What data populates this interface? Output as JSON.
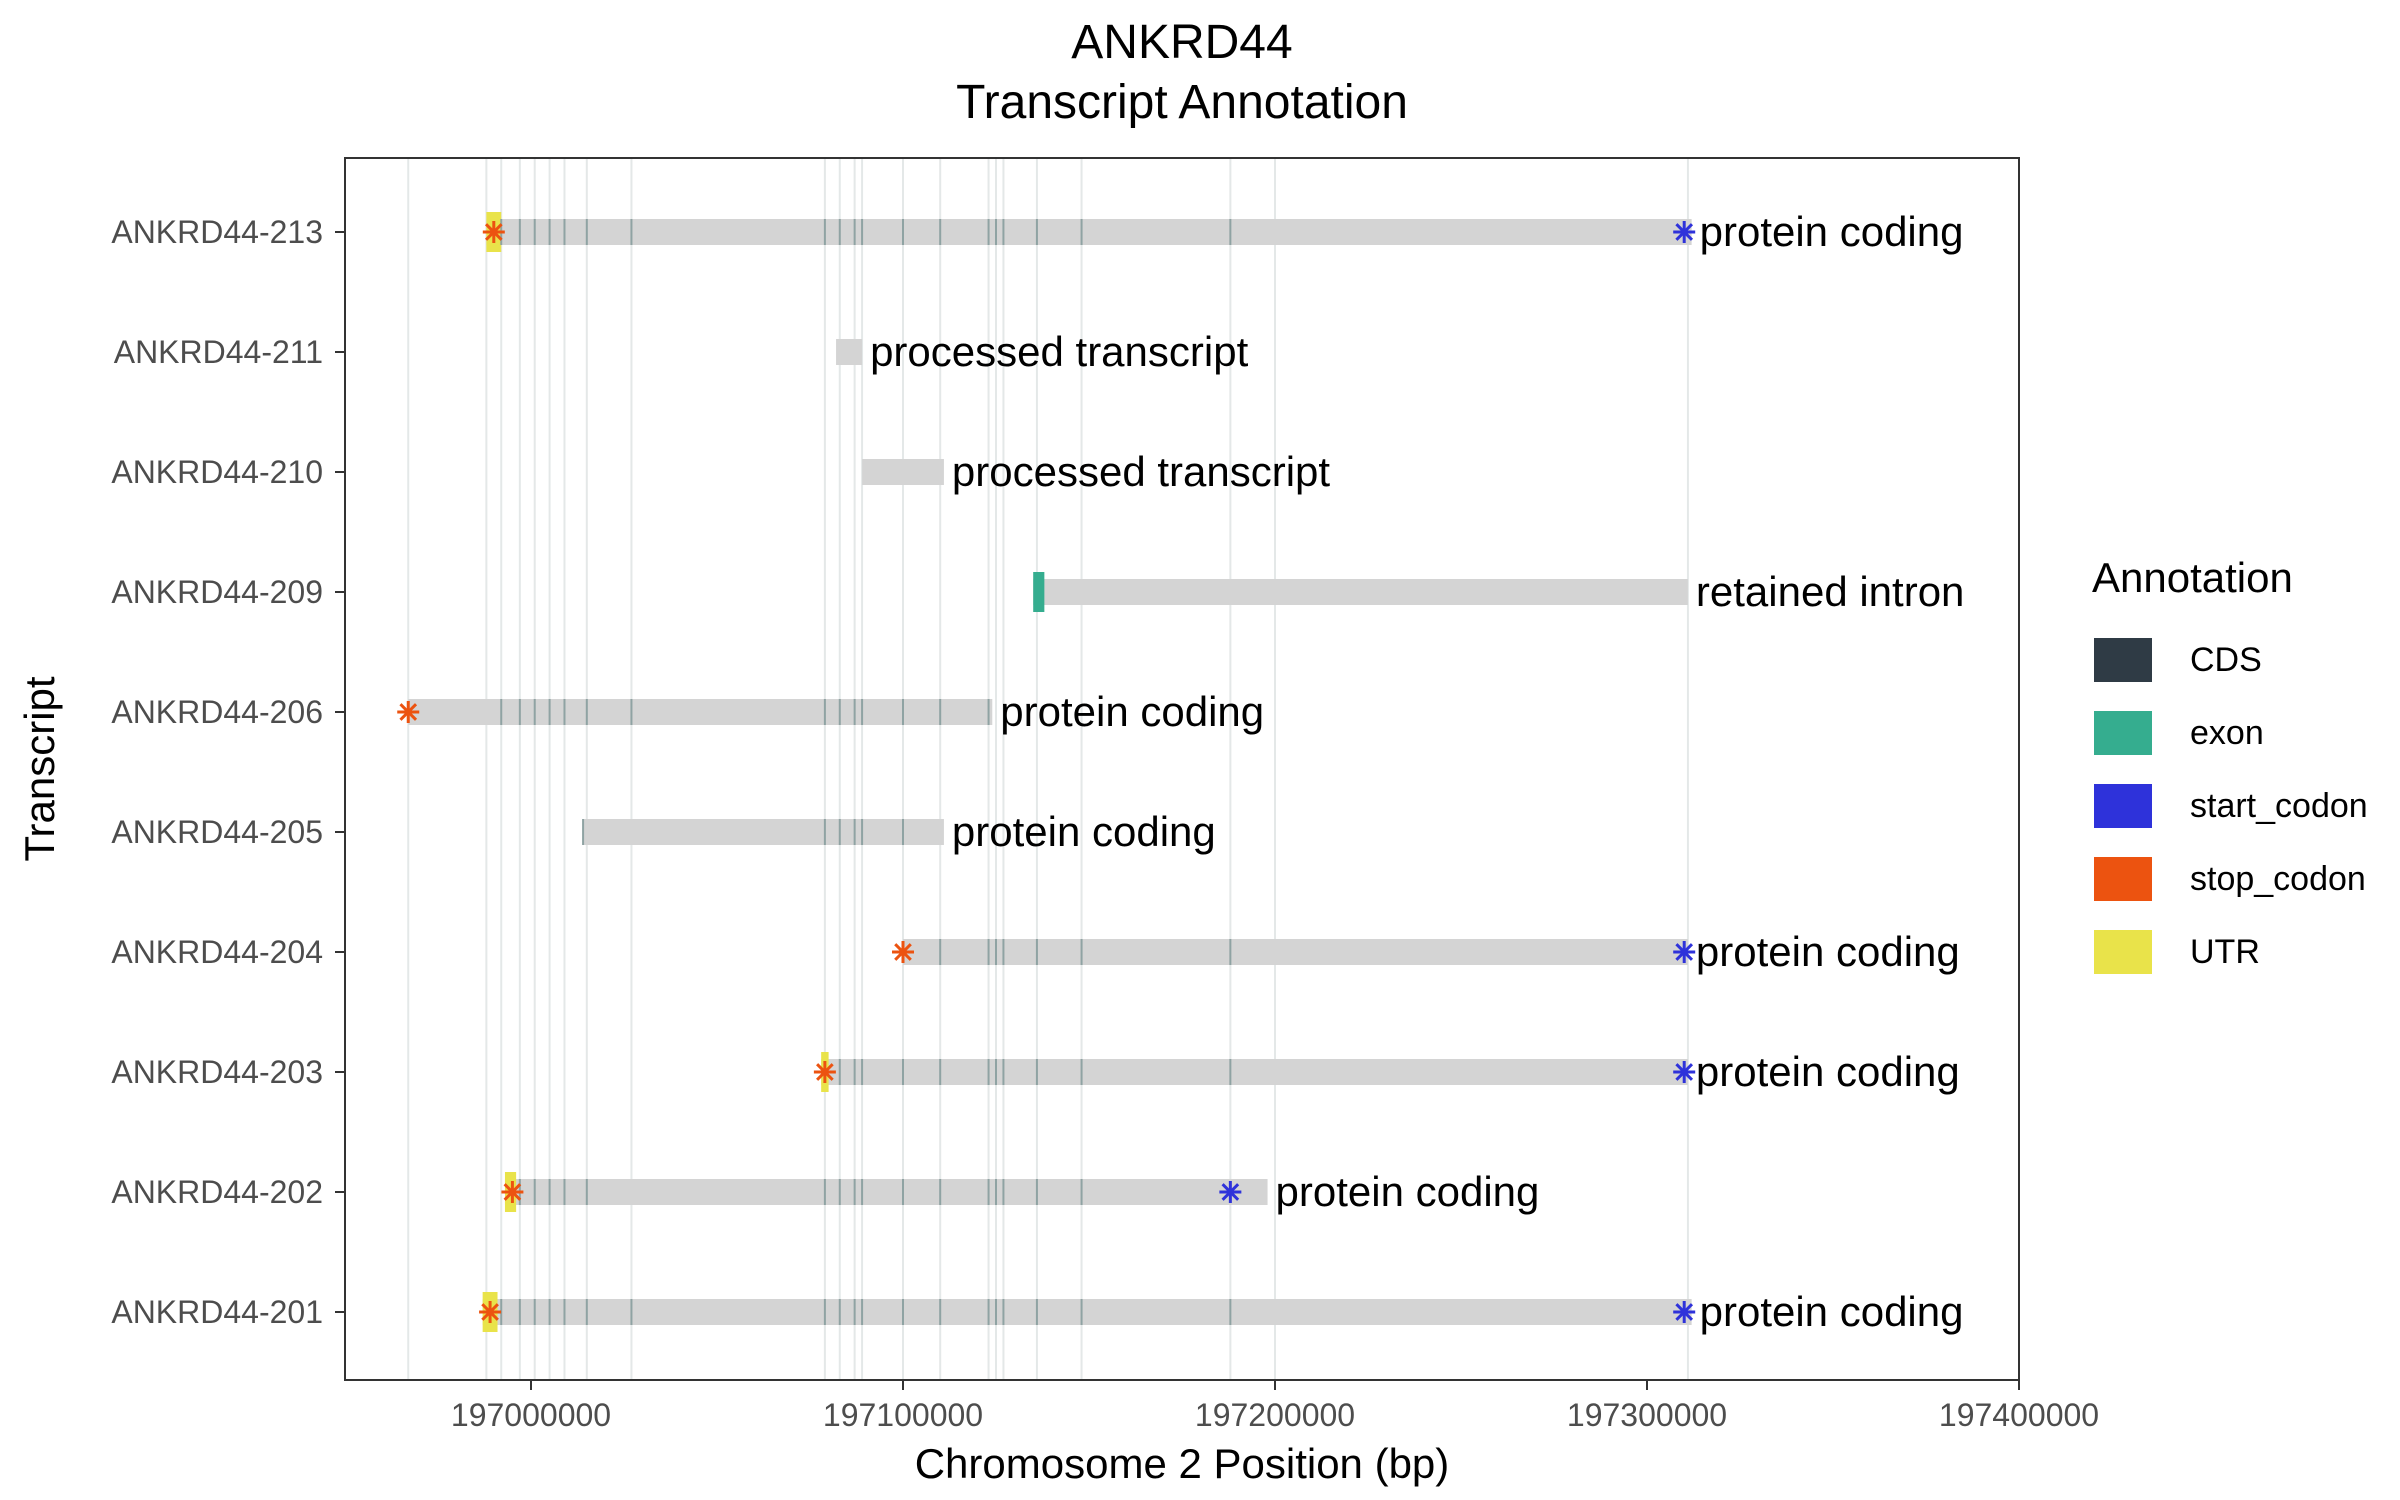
{
  "chart_data": {
    "type": "gene-track",
    "title_line1": "ANKRD44",
    "title_line2": "Transcript Annotation",
    "xlabel": "Chromosome 2 Position (bp)",
    "ylabel": "Transcript",
    "xlim": [
      196950000,
      197400000
    ],
    "x_ticks": [
      {
        "value": 197000000,
        "label": "197000000"
      },
      {
        "value": 197100000,
        "label": "197100000"
      },
      {
        "value": 197200000,
        "label": "197200000"
      },
      {
        "value": 197300000,
        "label": "197300000"
      },
      {
        "value": 197400000,
        "label": "197400000"
      }
    ],
    "legend": {
      "title": "Annotation",
      "position": "right",
      "entries": [
        {
          "key": "CDS",
          "label": "CDS",
          "color": "#2f3b45"
        },
        {
          "key": "exon",
          "label": "exon",
          "color": "#35ad8f"
        },
        {
          "key": "start_codon",
          "label": "start_codon",
          "color": "#2e32da"
        },
        {
          "key": "stop_codon",
          "label": "stop_codon",
          "color": "#ec5310"
        },
        {
          "key": "UTR",
          "label": "UTR",
          "color": "#e9e34a"
        }
      ]
    },
    "colors": {
      "transcript_body": "#d4d4d4",
      "exon_guide": "#e4e8e8",
      "cds_mark": "#8fa3a3"
    },
    "exon_positions": [
      196967000,
      196988000,
      196992000,
      196997000,
      197001000,
      197005000,
      197009000,
      197015000,
      197027000,
      197079000,
      197083000,
      197087000,
      197089000,
      197100000,
      197110000,
      197123000,
      197125000,
      197127000,
      197136000,
      197148000,
      197188000,
      197200000,
      197311000
    ],
    "transcripts": [
      {
        "name": "ANKRD44-213",
        "start": 196988000,
        "end": 197312000,
        "biotype": "protein coding",
        "utr": [
          [
            196988000,
            196992000
          ]
        ],
        "stop": 196990000,
        "start_codon": 197310000,
        "cds": [
          196992000,
          196997000,
          197001000,
          197005000,
          197009000,
          197015000,
          197027000,
          197079000,
          197083000,
          197087000,
          197089000,
          197100000,
          197110000,
          197123000,
          197125000,
          197127000,
          197136000,
          197148000,
          197188000
        ]
      },
      {
        "name": "ANKRD44-211",
        "start": 197082000,
        "end": 197089000,
        "biotype": "processed transcript",
        "cds": []
      },
      {
        "name": "ANKRD44-210",
        "start": 197089000,
        "end": 197111000,
        "biotype": "processed transcript",
        "cds": []
      },
      {
        "name": "ANKRD44-209",
        "start": 197135000,
        "end": 197311000,
        "biotype": "retained intron",
        "exon": [
          [
            197135000,
            197138000
          ]
        ],
        "cds": []
      },
      {
        "name": "ANKRD44-206",
        "start": 196967000,
        "end": 197124000,
        "biotype": "protein coding",
        "stop": 196967000,
        "cds": [
          196992000,
          196997000,
          197001000,
          197005000,
          197009000,
          197015000,
          197027000,
          197079000,
          197083000,
          197087000,
          197089000,
          197100000,
          197110000,
          197123000
        ]
      },
      {
        "name": "ANKRD44-205",
        "start": 197014000,
        "end": 197111000,
        "biotype": "protein coding",
        "cds": [
          197014000,
          197079000,
          197083000,
          197087000,
          197089000,
          197100000
        ]
      },
      {
        "name": "ANKRD44-204",
        "start": 197100000,
        "end": 197311000,
        "biotype": "protein coding",
        "stop": 197100000,
        "start_codon": 197310000,
        "cds": [
          197110000,
          197123000,
          197125000,
          197127000,
          197136000,
          197148000,
          197188000
        ]
      },
      {
        "name": "ANKRD44-203",
        "start": 197078000,
        "end": 197311000,
        "biotype": "protein coding",
        "utr": [
          [
            197078000,
            197080000
          ]
        ],
        "stop": 197079000,
        "start_codon": 197310000,
        "cds": [
          197083000,
          197087000,
          197089000,
          197100000,
          197110000,
          197123000,
          197125000,
          197127000,
          197136000,
          197148000,
          197188000
        ]
      },
      {
        "name": "ANKRD44-202",
        "start": 196993000,
        "end": 197198000,
        "biotype": "protein coding",
        "utr": [
          [
            196993000,
            196996000
          ]
        ],
        "stop": 196995000,
        "start_codon": 197188000,
        "cds": [
          196997000,
          197001000,
          197005000,
          197009000,
          197015000,
          197079000,
          197083000,
          197087000,
          197089000,
          197100000,
          197110000,
          197123000,
          197125000,
          197127000,
          197136000,
          197148000
        ]
      },
      {
        "name": "ANKRD44-201",
        "start": 196987000,
        "end": 197312000,
        "biotype": "protein coding",
        "utr": [
          [
            196987000,
            196991000
          ]
        ],
        "stop": 196989000,
        "start_codon": 197310000,
        "cds": [
          196992000,
          196997000,
          197001000,
          197005000,
          197009000,
          197015000,
          197027000,
          197079000,
          197083000,
          197087000,
          197089000,
          197100000,
          197110000,
          197123000,
          197125000,
          197127000,
          197136000,
          197148000,
          197188000
        ]
      }
    ]
  }
}
